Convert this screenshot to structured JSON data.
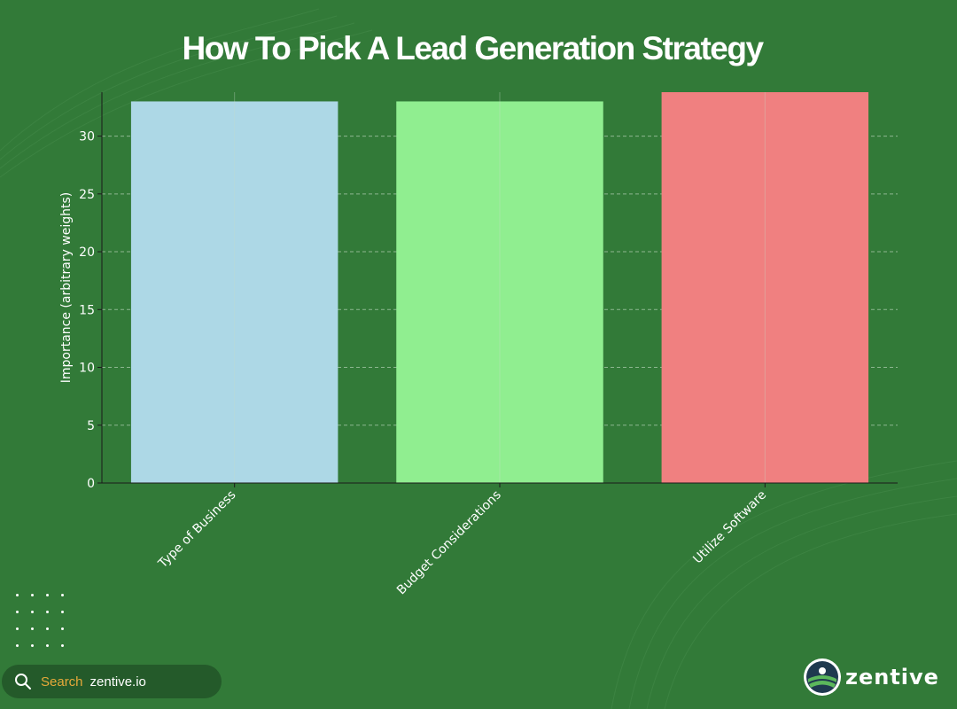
{
  "chart_data": {
    "type": "bar",
    "title": "How To Pick A Lead Generation Strategy",
    "xlabel": "",
    "ylabel": "Importance (arbitrary weights)",
    "categories": [
      "Type of Business",
      "Budget Considerations",
      "Utilize Software"
    ],
    "values": [
      33,
      33,
      33.8
    ],
    "colors": [
      "#add8e6",
      "#90ee90",
      "#f08080"
    ],
    "ylim": [
      0,
      33.8
    ],
    "yticks": [
      0,
      5,
      10,
      15,
      20,
      25,
      30
    ],
    "grid": "horizontal dashed",
    "legend": "none"
  },
  "footer": {
    "search_label": "Search",
    "search_domain": "zentive.io",
    "logo_text": "zentive"
  },
  "colors": {
    "background": "#327a38",
    "search_accent": "#e7a93a",
    "logo_navy": "#1f3a4f"
  }
}
